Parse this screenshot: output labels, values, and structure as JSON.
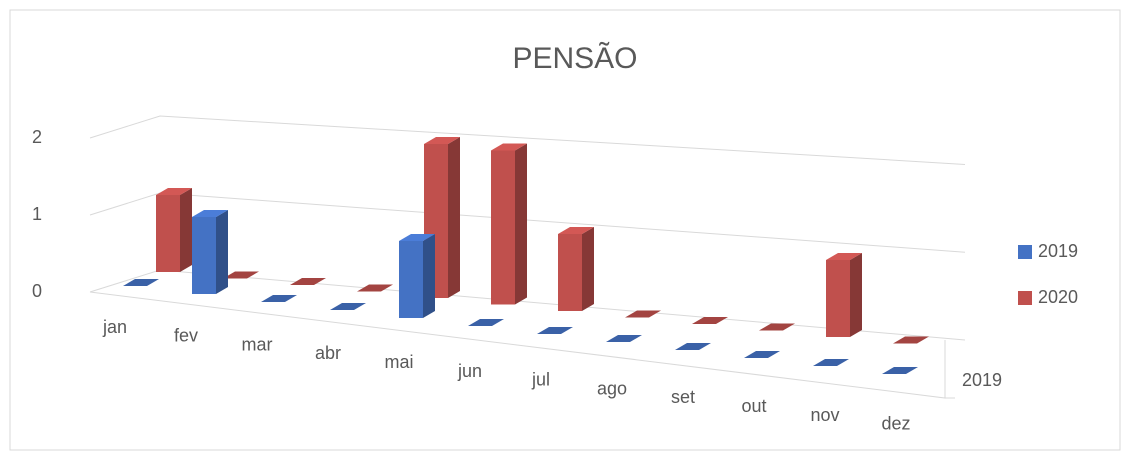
{
  "chart_data": {
    "type": "bar3d",
    "title": "PENSÃO",
    "categories": [
      "jan",
      "fev",
      "mar",
      "abr",
      "mai",
      "jun",
      "jul",
      "ago",
      "set",
      "out",
      "nov",
      "dez"
    ],
    "series": [
      {
        "name": "2019",
        "color": "#4472c4",
        "values": [
          0,
          1,
          0,
          0,
          1,
          0,
          0,
          0,
          0,
          0,
          0,
          0
        ]
      },
      {
        "name": "2020",
        "color": "#c0504d",
        "values": [
          1,
          0,
          0,
          0,
          2,
          2,
          1,
          0,
          0,
          0,
          1,
          0
        ]
      }
    ],
    "series_axis_labels": [
      "2019"
    ],
    "ylim": [
      0,
      2
    ],
    "yticks": [
      0,
      1,
      2
    ],
    "grid": true,
    "legend": "right"
  }
}
